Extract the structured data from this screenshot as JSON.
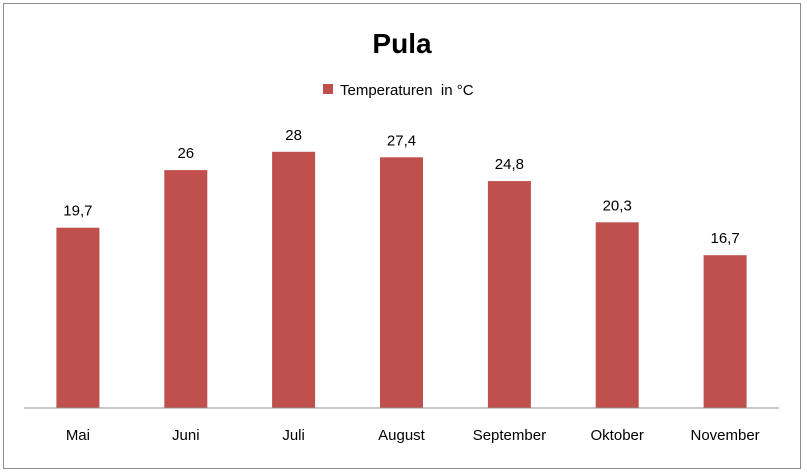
{
  "chart_data": {
    "type": "bar",
    "title": "Pula",
    "categories": [
      "Mai",
      "Juni",
      "Juli",
      "August",
      "September",
      "Oktober",
      "November"
    ],
    "series": [
      {
        "name": "Temperaturen  in °C",
        "values": [
          19.7,
          26,
          28,
          27.4,
          24.8,
          20.3,
          16.7
        ],
        "labels": [
          "19,7",
          "26",
          "28",
          "27,4",
          "24,8",
          "20,3",
          "16,7"
        ],
        "color": "#C0504D"
      }
    ],
    "xlabel": "",
    "ylabel": "",
    "ylim": [
      0,
      35
    ],
    "grid": false,
    "legend": "top-center"
  }
}
